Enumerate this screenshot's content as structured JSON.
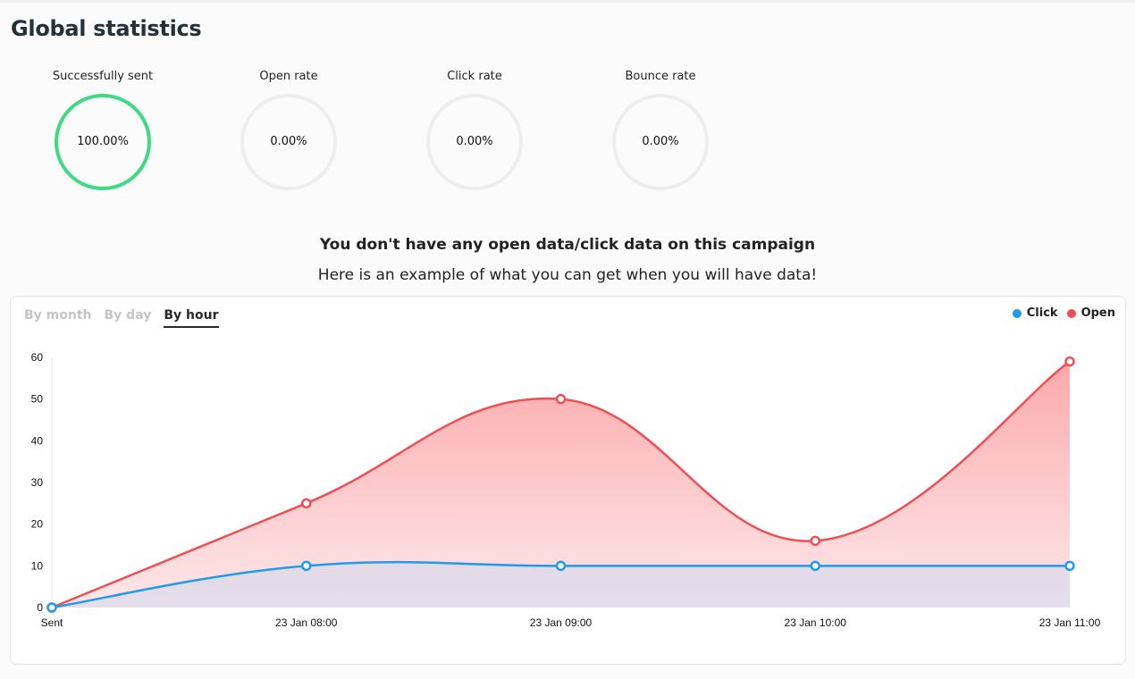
{
  "page": {
    "title": "Global statistics"
  },
  "stats": [
    {
      "label": "Successfully sent",
      "value": "100.00%",
      "fraction": 1.0,
      "color": "#3ddc84"
    },
    {
      "label": "Open rate",
      "value": "0.00%",
      "fraction": 0.0,
      "color": "#3ddc84"
    },
    {
      "label": "Click rate",
      "value": "0.00%",
      "fraction": 0.0,
      "color": "#3ddc84"
    },
    {
      "label": "Bounce rate",
      "value": "0.00%",
      "fraction": 0.0,
      "color": "#3ddc84"
    }
  ],
  "empty_state": {
    "title": "You don't have any open data/click data on this campaign",
    "subtitle": "Here is an example of what you can get when you will have data!"
  },
  "tabs": [
    {
      "label": "By month",
      "active": false
    },
    {
      "label": "By day",
      "active": false
    },
    {
      "label": "By hour",
      "active": true
    }
  ],
  "legend": [
    {
      "label": "Click",
      "color": "#1e9bef"
    },
    {
      "label": "Open",
      "color": "#ef4e55"
    }
  ],
  "chart_data": {
    "type": "area",
    "categories": [
      "Sent",
      "23 Jan 08:00",
      "23 Jan 09:00",
      "23 Jan 10:00",
      "23 Jan 11:00"
    ],
    "series": [
      {
        "name": "Open",
        "color": "#ef4e55",
        "values": [
          0,
          25,
          50,
          16,
          59
        ]
      },
      {
        "name": "Click",
        "color": "#1e9bef",
        "values": [
          0,
          10,
          10,
          10,
          10
        ]
      }
    ],
    "ylim": [
      0,
      60
    ],
    "yticks": [
      0,
      10,
      20,
      30,
      40,
      50,
      60
    ],
    "grid": false,
    "legend_position": "top-right"
  }
}
